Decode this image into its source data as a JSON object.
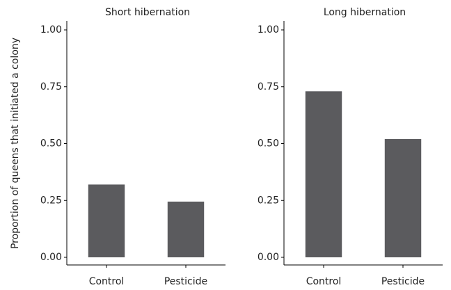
{
  "chart_data": [
    {
      "type": "bar",
      "title": "Short hibernation",
      "y_label": "Proportion of queens that initiated a colony",
      "categories": [
        "Control",
        "Pesticide"
      ],
      "values": [
        0.32,
        0.245
      ],
      "color": "#5b5b5e",
      "ylim": [
        0,
        1
      ],
      "yticks": [
        {
          "value": 0,
          "label": "0.00"
        },
        0.25,
        {
          "value": 0.5,
          "label": "0.50"
        },
        0.75,
        {
          "value": 1,
          "label": "1.00"
        }
      ]
    },
    {
      "type": "bar",
      "title": "Long hibernation",
      "categories": [
        "Control",
        "Pesticide"
      ],
      "values": [
        0.73,
        0.52
      ],
      "color": "#5b5b5e",
      "ylim": [
        0,
        1
      ],
      "yticks": [
        {
          "value": 0,
          "label": "0.00"
        },
        0.25,
        {
          "value": 0.5,
          "label": "0.50"
        },
        0.75,
        {
          "value": 1,
          "label": "1.00"
        }
      ]
    }
  ]
}
